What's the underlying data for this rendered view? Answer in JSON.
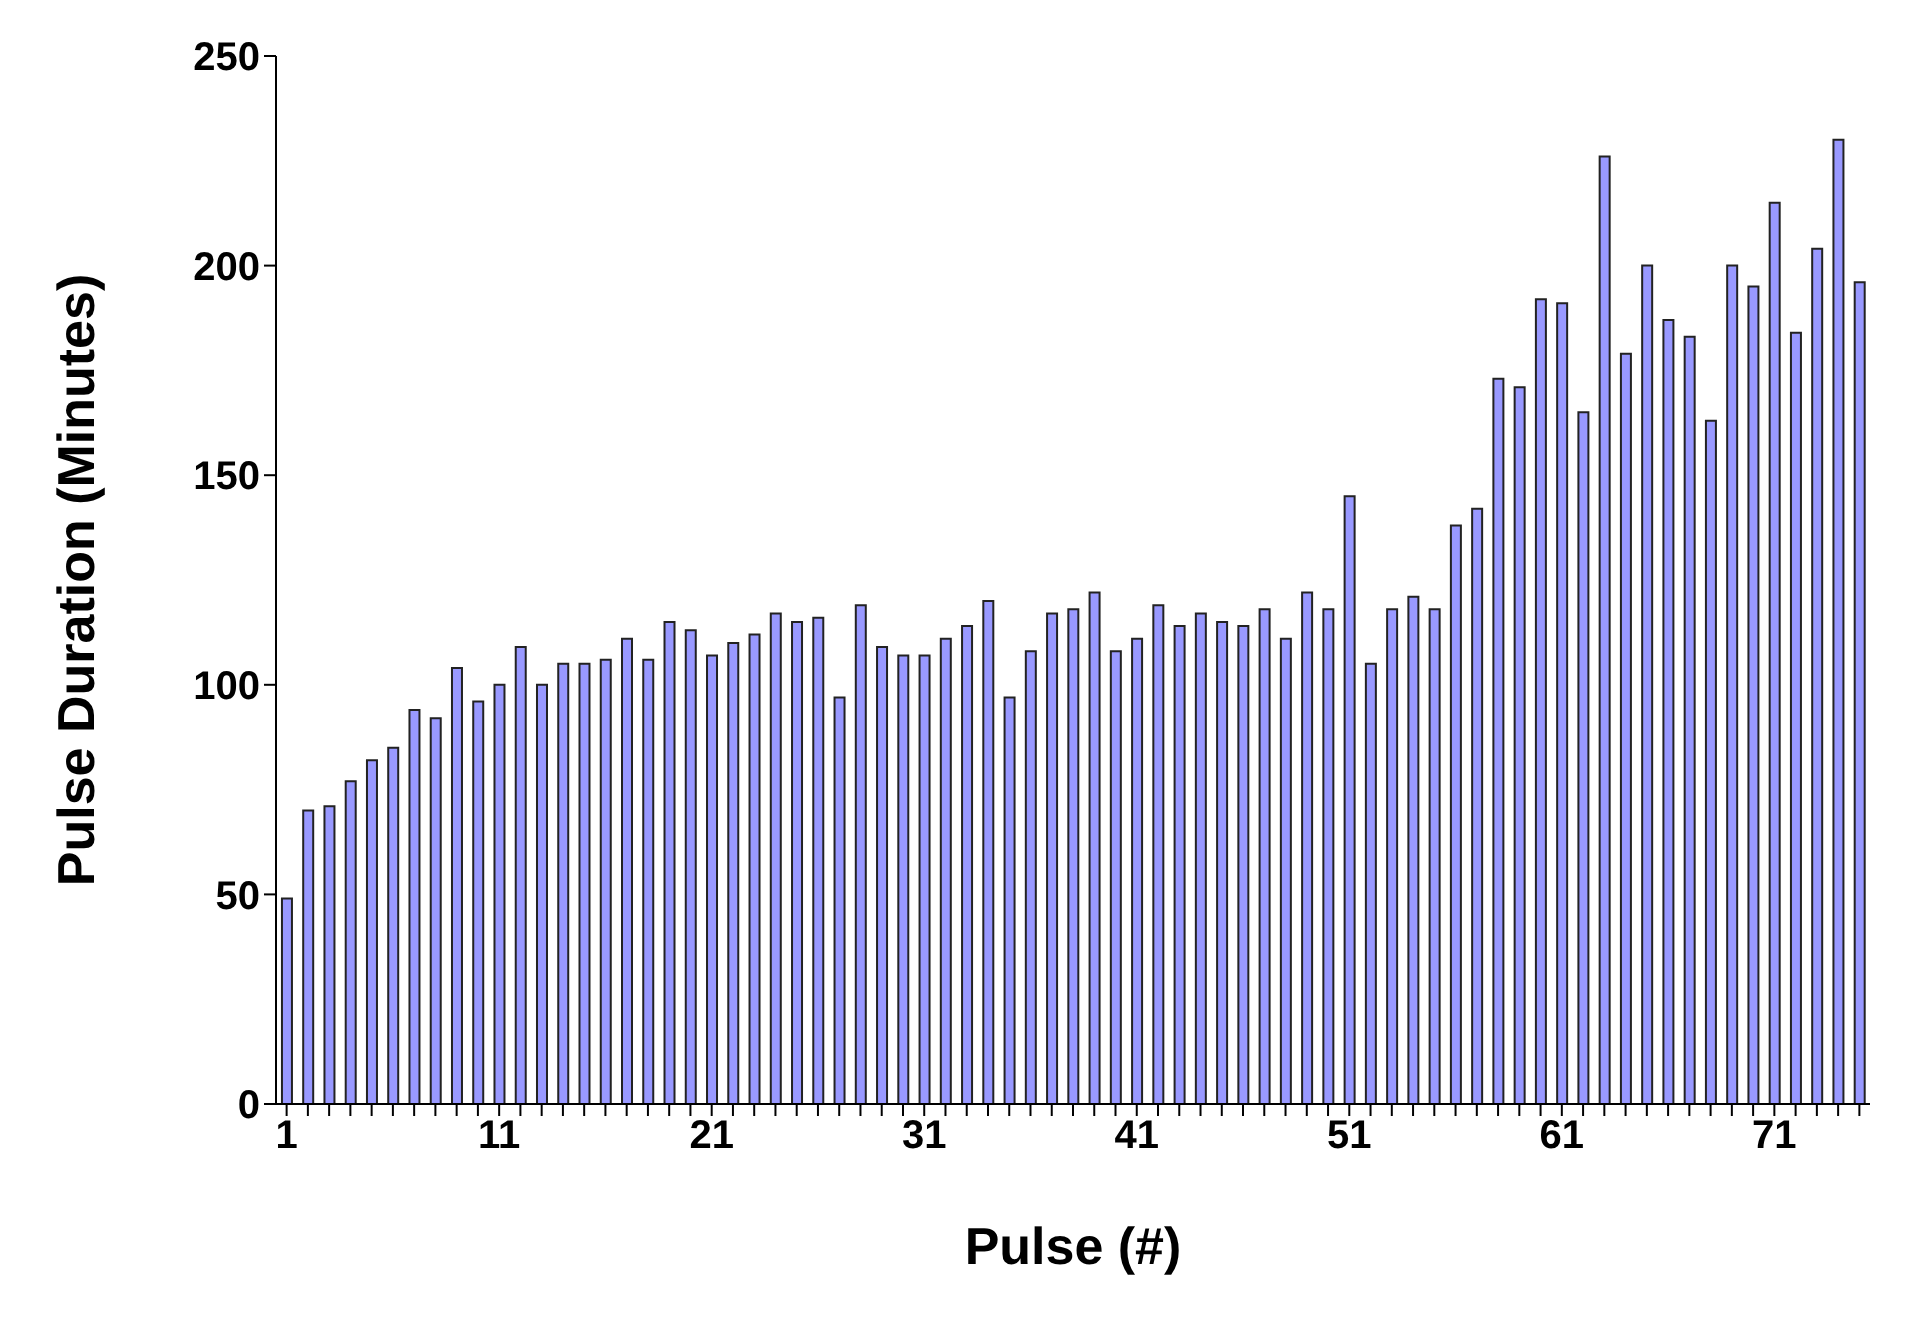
{
  "chart_data": {
    "type": "bar",
    "xlabel": "Pulse (#)",
    "ylabel": "Pulse Duration (Minutes)",
    "categories": [
      "1",
      null,
      null,
      null,
      null,
      null,
      null,
      null,
      null,
      null,
      "11",
      null,
      null,
      null,
      null,
      null,
      null,
      null,
      null,
      null,
      "21",
      null,
      null,
      null,
      null,
      null,
      null,
      null,
      null,
      null,
      "31",
      null,
      null,
      null,
      null,
      null,
      null,
      null,
      null,
      null,
      "41",
      null,
      null,
      null,
      null,
      null,
      null,
      null,
      null,
      null,
      "51",
      null,
      null,
      null,
      null,
      null,
      null,
      null,
      null,
      null,
      "61",
      null,
      null,
      null,
      null,
      null,
      null,
      null,
      null,
      null,
      "71",
      null,
      null,
      null,
      null
    ],
    "values": [
      49,
      70,
      71,
      77,
      82,
      85,
      94,
      92,
      104,
      96,
      100,
      109,
      100,
      105,
      105,
      106,
      111,
      106,
      115,
      113,
      107,
      110,
      112,
      117,
      115,
      116,
      97,
      119,
      109,
      107,
      107,
      111,
      114,
      120,
      97,
      108,
      117,
      118,
      122,
      108,
      111,
      119,
      114,
      117,
      115,
      114,
      118,
      111,
      122,
      118,
      145,
      105,
      118,
      121,
      118,
      138,
      142,
      173,
      171,
      192,
      191,
      165,
      226,
      179,
      200,
      187,
      183,
      163,
      200,
      195,
      215,
      184,
      204,
      230,
      196
    ],
    "color": "#9999ff",
    "ylim": [
      0,
      250
    ],
    "yticks": [
      0,
      50,
      100,
      150,
      200,
      250
    ],
    "grid": false,
    "legend": false
  }
}
